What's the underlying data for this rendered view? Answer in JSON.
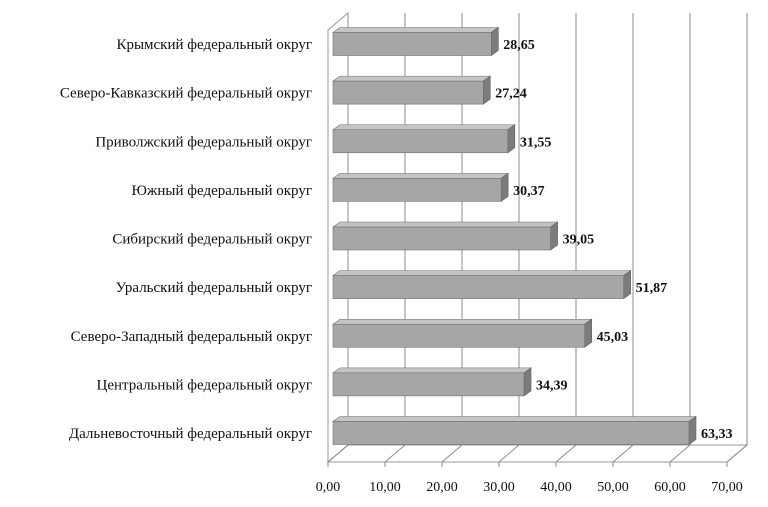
{
  "chart_data": {
    "type": "bar",
    "orientation": "horizontal",
    "style": "3d",
    "categories": [
      "Крымский федеральный округ",
      "Северо-Кавказский федеральный округ",
      "Приволжский федеральный округ",
      "Южный федеральный округ",
      "Сибирский федеральный округ",
      "Уральский федеральный округ",
      "Северо-Западный федеральный округ",
      "Центральный федеральный округ",
      "Дальневосточный федеральный округ"
    ],
    "values": [
      28.65,
      27.24,
      31.55,
      30.37,
      39.05,
      51.87,
      45.03,
      34.39,
      63.33
    ],
    "value_labels": [
      "28,65",
      "27,24",
      "31,55",
      "30,37",
      "39,05",
      "51,87",
      "45,03",
      "34,39",
      "63,33"
    ],
    "xlim": [
      0,
      70
    ],
    "x_ticks": [
      0,
      10,
      20,
      30,
      40,
      50,
      60,
      70
    ],
    "x_tick_labels": [
      "0,00",
      "10,00",
      "20,00",
      "30,00",
      "40,00",
      "50,00",
      "60,00",
      "70,00"
    ],
    "grid": "vertical",
    "legend": "none",
    "colors": {
      "bar_front": "#a6a6a6",
      "bar_top": "#c4c4c4",
      "bar_side": "#7c7c7c",
      "grid": "#8c8c8c",
      "wall": "#9a9a9a"
    }
  }
}
